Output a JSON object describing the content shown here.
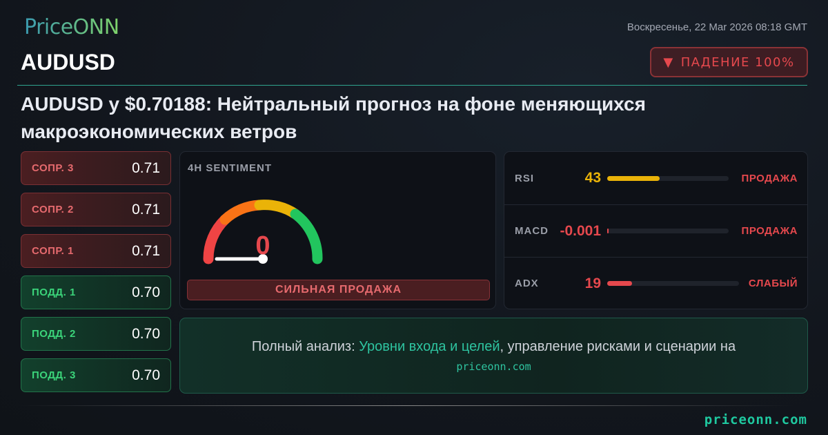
{
  "brand": {
    "logo": "PriceONN",
    "footer": "priceonn.com"
  },
  "header": {
    "date": "Воскресенье, 22 Mar 2026 08:18 GMT",
    "symbol": "AUDUSD",
    "badge": {
      "icon": "triangle-down-icon",
      "label": "ПАДЕНИЕ 100%"
    },
    "headline": "AUDUSD у $0.70188: Нейтральный прогноз на фоне меняющихся макроэкономических ветров"
  },
  "levels": [
    {
      "label": "СОПР. 3",
      "value": "0.71",
      "type": "resistance"
    },
    {
      "label": "СОПР. 2",
      "value": "0.71",
      "type": "resistance"
    },
    {
      "label": "СОПР. 1",
      "value": "0.71",
      "type": "resistance"
    },
    {
      "label": "ПОДД. 1",
      "value": "0.70",
      "type": "support"
    },
    {
      "label": "ПОДД. 2",
      "value": "0.70",
      "type": "support"
    },
    {
      "label": "ПОДД. 3",
      "value": "0.70",
      "type": "support"
    }
  ],
  "sentiment": {
    "title": "4H SENTIMENT",
    "value": "0",
    "gauge_fraction": 0,
    "signal": "СИЛЬНАЯ ПРОДАЖА"
  },
  "indicators": [
    {
      "name": "RSI",
      "value": "43",
      "fill_percent": 43,
      "color": "#eab308",
      "signal": "ПРОДАЖА"
    },
    {
      "name": "MACD",
      "value": "-0.001",
      "fill_percent": 0.5,
      "color": "#e5484d",
      "signal": "ПРОДАЖА"
    },
    {
      "name": "ADX",
      "value": "19",
      "fill_percent": 19,
      "color": "#e5484d",
      "signal": "СЛАБЫЙ"
    }
  ],
  "cta": {
    "prefix": "Полный анализ: ",
    "highlight": "Уровни входа и целей",
    "suffix": ", управление рисками и сценарии на",
    "link": "priceonn.com"
  },
  "colors": {
    "accent": "#2ec4a0",
    "sell": "#e5484d",
    "buy": "#3bd47a"
  }
}
